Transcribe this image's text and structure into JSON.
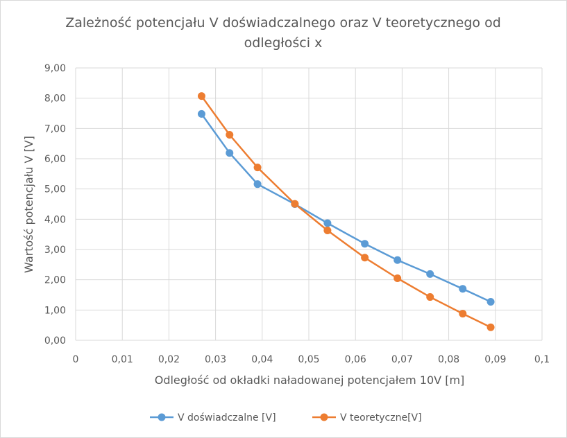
{
  "chart_data": {
    "type": "scatter",
    "title_line1": "Zależność potencjału V doświadczalnego oraz V teoretycznego od",
    "title_line2": "odległości x",
    "xlabel": "Odległość od okładki naładowanej potencjałem 10V [m]",
    "ylabel": "Wartość potencjału V [V]",
    "xlim": [
      0,
      0.1
    ],
    "ylim": [
      0,
      9
    ],
    "x_ticks": [
      0,
      0.01,
      0.02,
      0.03,
      0.04,
      0.05,
      0.06,
      0.07,
      0.08,
      0.09,
      0.1
    ],
    "x_tick_labels": [
      "0",
      "0,01",
      "0,02",
      "0,03",
      "0,04",
      "0,05",
      "0,06",
      "0,07",
      "0,08",
      "0,09",
      "0,1"
    ],
    "y_ticks": [
      0,
      1,
      2,
      3,
      4,
      5,
      6,
      7,
      8,
      9
    ],
    "y_tick_labels": [
      "0,00",
      "1,00",
      "2,00",
      "3,00",
      "4,00",
      "5,00",
      "6,00",
      "7,00",
      "8,00",
      "9,00"
    ],
    "grid": true,
    "legend_position": "bottom",
    "series": [
      {
        "name": "V doświadczalne [V]",
        "color": "#5b9bd5",
        "x": [
          0.027,
          0.033,
          0.039,
          0.047,
          0.054,
          0.062,
          0.069,
          0.076,
          0.083,
          0.089
        ],
        "y": [
          7.48,
          6.19,
          5.16,
          4.5,
          3.87,
          3.19,
          2.65,
          2.19,
          1.7,
          1.27
        ]
      },
      {
        "name": "V teoretyczne[V]",
        "color": "#ed7d31",
        "x": [
          0.027,
          0.033,
          0.039,
          0.047,
          0.054,
          0.062,
          0.069,
          0.076,
          0.083,
          0.089
        ],
        "y": [
          8.07,
          6.79,
          5.71,
          4.51,
          3.63,
          2.73,
          2.05,
          1.43,
          0.88,
          0.43
        ]
      }
    ]
  }
}
